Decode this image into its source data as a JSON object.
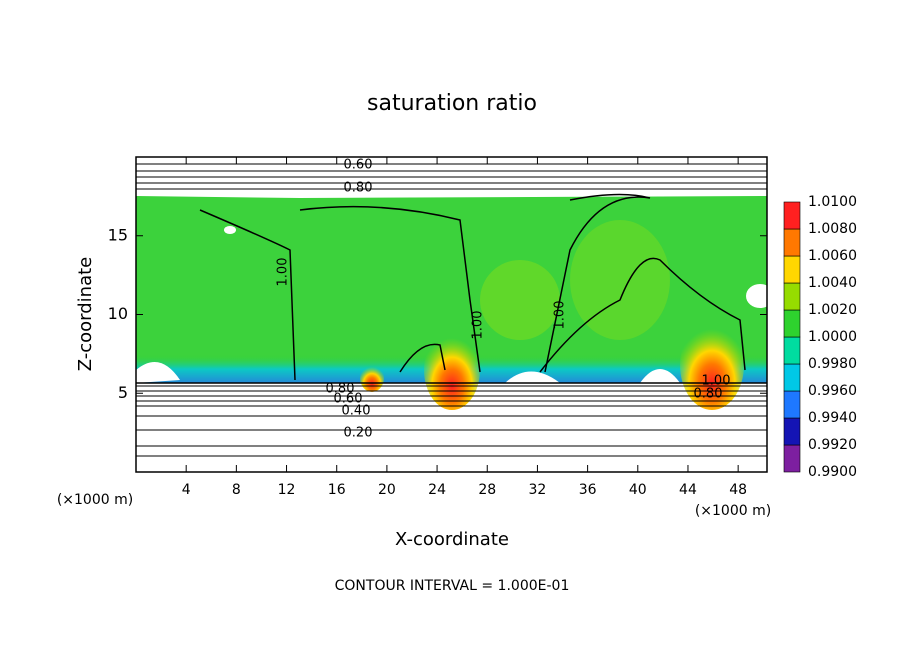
{
  "chart_data": {
    "type": "contour",
    "title": "saturation ratio",
    "x_label": "X-coordinate",
    "y_label": "Z-coordinate",
    "x_unit": "(×1000 m)",
    "xlim": [
      0,
      50.3
    ],
    "xticks": [
      4,
      8,
      12,
      16,
      20,
      24,
      28,
      32,
      36,
      40,
      44,
      48
    ],
    "ylim": [
      0,
      20
    ],
    "yticks": [
      5,
      10,
      15
    ],
    "contour_labels": [
      "0.60",
      "0.80",
      "1.00",
      "1.00",
      "1.00",
      "0.80",
      "0.60",
      "0.40",
      "0.20",
      "1.00",
      "0.80"
    ],
    "footer": "CONTOUR INTERVAL = 1.000E-01",
    "colorbar": {
      "clim": [
        0.99,
        1.01
      ],
      "levels": [
        {
          "value": 0.99,
          "label": "0.9900"
        },
        {
          "value": 0.992,
          "label": "0.9920"
        },
        {
          "value": 0.994,
          "label": "0.9940"
        },
        {
          "value": 0.996,
          "label": "0.9960"
        },
        {
          "value": 0.998,
          "label": "0.9980"
        },
        {
          "value": 1.0,
          "label": "1.0000"
        },
        {
          "value": 1.002,
          "label": "1.0020"
        },
        {
          "value": 1.004,
          "label": "1.0040"
        },
        {
          "value": 1.006,
          "label": "1.0060"
        },
        {
          "value": 1.008,
          "label": "1.0080"
        },
        {
          "value": 1.01,
          "label": "1.0100"
        }
      ],
      "colors": [
        "#7d1fa0",
        "#1414b4",
        "#1e78ff",
        "#00c8e6",
        "#00dca0",
        "#2ed22e",
        "#96dc00",
        "#ffd700",
        "#ff7800",
        "#ff2020"
      ]
    }
  }
}
